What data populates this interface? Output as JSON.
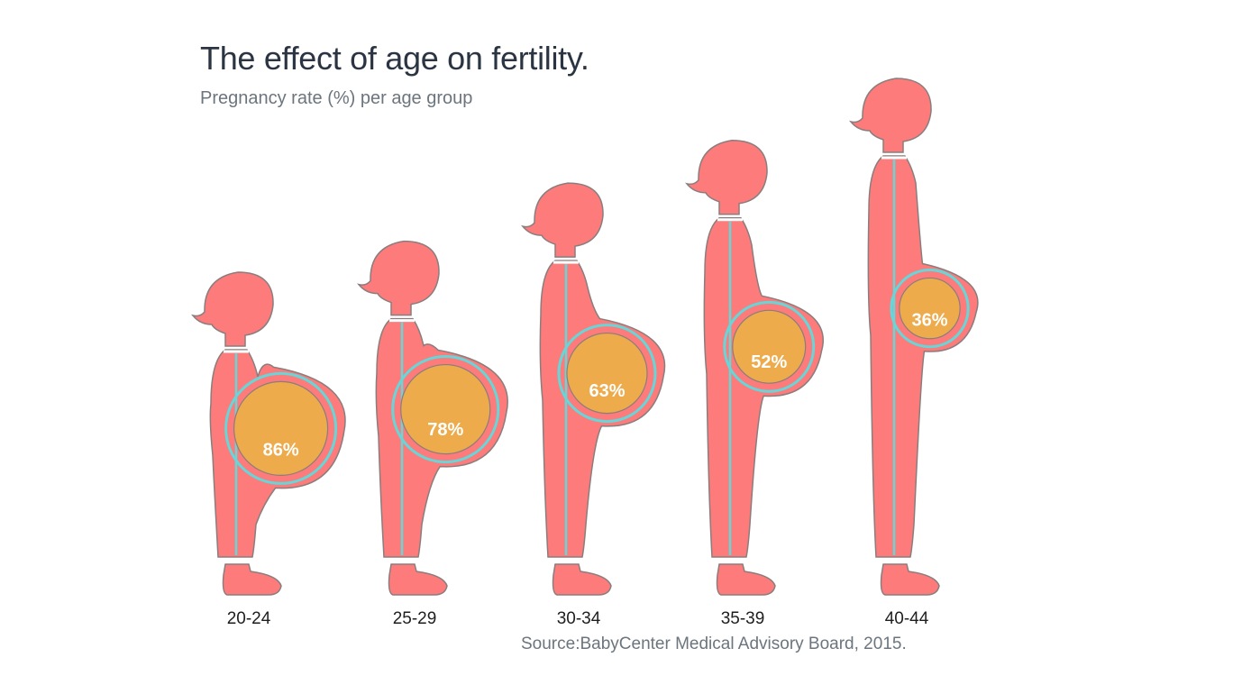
{
  "title": "The effect of age on fertility.",
  "subtitle": "Pregnancy rate (%) per age group",
  "source": "Source:BabyCenter Medical Advisory Board, 2015.",
  "colors": {
    "body": "#fd7b7b",
    "outline": "#8a7d7d",
    "belly": "#edab4c",
    "ring": "#66d6d8",
    "percent_text": "#ffffff",
    "label_text": "#1e1e1e"
  },
  "chart_data": {
    "type": "pictogram",
    "title": "The effect of age on fertility.",
    "subtitle": "Pregnancy rate (%) per age group",
    "unit": "%",
    "categories": [
      "20-24",
      "25-29",
      "30-34",
      "35-39",
      "40-44"
    ],
    "values": [
      86,
      78,
      63,
      52,
      36
    ],
    "value_labels": [
      "86%",
      "78%",
      "63%",
      "52%",
      "36%"
    ]
  }
}
